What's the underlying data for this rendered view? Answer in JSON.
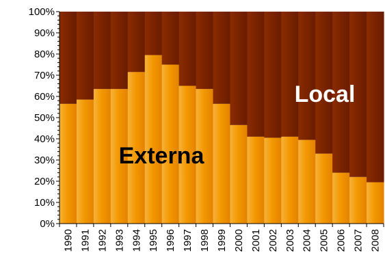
{
  "chart_data": {
    "type": "bar",
    "stacked": true,
    "percent_stacked": true,
    "categories": [
      "1990",
      "1991",
      "1992",
      "1993",
      "1994",
      "1995",
      "1996",
      "1997",
      "1998",
      "1999",
      "2000",
      "2001",
      "2002",
      "2003",
      "2004",
      "2005",
      "2006",
      "2007",
      "2008"
    ],
    "series": [
      {
        "name": "Externa",
        "color": "#F39800",
        "values": [
          56.5,
          58.5,
          63.5,
          63.5,
          71.5,
          79.5,
          75.0,
          65.0,
          63.5,
          56.5,
          46.5,
          41.0,
          40.5,
          41.0,
          39.5,
          33.0,
          24.0,
          22.0,
          19.5
        ]
      },
      {
        "name": "Local",
        "color": "#7A2300",
        "values": [
          43.5,
          41.5,
          36.5,
          36.5,
          28.5,
          20.5,
          25.0,
          35.0,
          36.5,
          43.5,
          53.5,
          59.0,
          59.5,
          59.0,
          60.5,
          67.0,
          76.0,
          78.0,
          80.5
        ]
      }
    ],
    "y_ticks": [
      "0%",
      "10%",
      "20%",
      "30%",
      "40%",
      "50%",
      "60%",
      "70%",
      "80%",
      "90%",
      "100%"
    ],
    "ylim": [
      0,
      100
    ],
    "xlabel": "",
    "ylabel": "",
    "grid": false,
    "legend": "none"
  }
}
